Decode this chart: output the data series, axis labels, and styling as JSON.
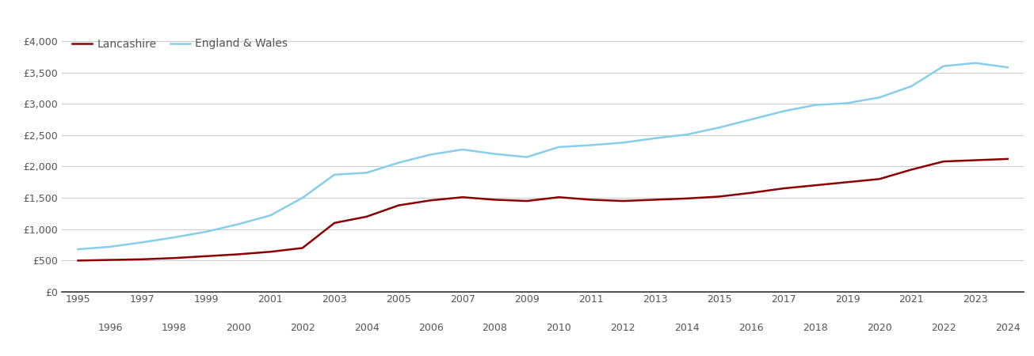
{
  "lancashire": {
    "years": [
      1995,
      1996,
      1997,
      1998,
      1999,
      2000,
      2001,
      2002,
      2003,
      2004,
      2005,
      2006,
      2007,
      2008,
      2009,
      2010,
      2011,
      2012,
      2013,
      2014,
      2015,
      2016,
      2017,
      2018,
      2019,
      2020,
      2021,
      2022,
      2023,
      2024
    ],
    "values": [
      500,
      510,
      520,
      540,
      570,
      600,
      640,
      700,
      1100,
      1200,
      1380,
      1460,
      1510,
      1470,
      1450,
      1510,
      1470,
      1450,
      1470,
      1490,
      1520,
      1580,
      1650,
      1700,
      1750,
      1800,
      1950,
      2080,
      2100,
      2120
    ]
  },
  "england_wales": {
    "years": [
      1995,
      1996,
      1997,
      1998,
      1999,
      2000,
      2001,
      2002,
      2003,
      2004,
      2005,
      2006,
      2007,
      2008,
      2009,
      2010,
      2011,
      2012,
      2013,
      2014,
      2015,
      2016,
      2017,
      2018,
      2019,
      2020,
      2021,
      2022,
      2023,
      2024
    ],
    "values": [
      680,
      720,
      790,
      870,
      960,
      1080,
      1220,
      1500,
      1870,
      1900,
      2060,
      2190,
      2270,
      2200,
      2150,
      2310,
      2340,
      2380,
      2450,
      2510,
      2620,
      2750,
      2880,
      2980,
      3010,
      3100,
      3280,
      3600,
      3650,
      3580
    ]
  },
  "lancashire_color": "#8B0000",
  "england_wales_color": "#87CEEB",
  "background_color": "#ffffff",
  "grid_color": "#cccccc",
  "ytick_labels": [
    "£0",
    "£500",
    "£1,000",
    "£1,500",
    "£2,000",
    "£2,500",
    "£3,000",
    "£3,500",
    "£4,000"
  ],
  "ytick_values": [
    0,
    500,
    1000,
    1500,
    2000,
    2500,
    3000,
    3500,
    4000
  ],
  "ylim": [
    0,
    4200
  ],
  "xlim": [
    1994.5,
    2024.5
  ],
  "xtick_odd": [
    1995,
    1997,
    1999,
    2001,
    2003,
    2005,
    2007,
    2009,
    2011,
    2013,
    2015,
    2017,
    2019,
    2021,
    2023
  ],
  "xtick_even": [
    1996,
    1998,
    2000,
    2002,
    2004,
    2006,
    2008,
    2010,
    2012,
    2014,
    2016,
    2018,
    2020,
    2022,
    2024
  ],
  "legend_lancashire": "Lancashire",
  "legend_ew": "England & Wales",
  "line_width": 1.8,
  "tick_fontsize": 9,
  "legend_fontsize": 10
}
